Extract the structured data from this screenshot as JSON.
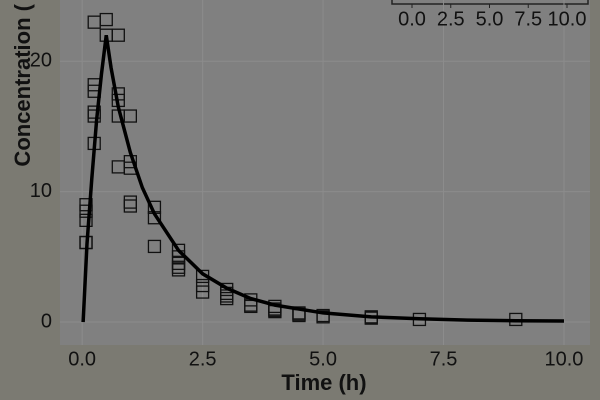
{
  "chart_data": {
    "type": "scatter",
    "x_label": "Time (h)",
    "y_label": "Concentration (",
    "xlim": [
      -0.46,
      10.54
    ],
    "ylim": [
      -1.76,
      24.7
    ],
    "xticks": [
      {
        "value": 0,
        "label": "0.0"
      },
      {
        "value": 2.5,
        "label": "2.5"
      },
      {
        "value": 5,
        "label": "5.0"
      },
      {
        "value": 7.5,
        "label": "7.5"
      },
      {
        "value": 10,
        "label": "10.0"
      }
    ],
    "yticks": [
      0,
      10,
      20
    ],
    "grid": true,
    "series": [
      {
        "type": "scatter",
        "color": "#111111",
        "x": [
          0.08,
          0.08,
          0.08,
          0.08,
          0.08,
          0.25,
          0.25,
          0.25,
          0.25,
          0.25,
          0.25,
          0.5,
          0.5,
          0.75,
          0.75,
          0.75,
          0.75,
          0.75,
          1,
          1,
          1,
          1,
          1,
          1.5,
          1.5,
          1.5,
          2,
          2,
          2,
          2,
          2,
          2.5,
          2.5,
          2.5,
          3,
          3,
          3,
          3,
          3.5,
          3.5,
          3.5,
          4,
          4,
          4,
          4,
          4.5,
          4.5,
          4.5,
          5,
          5,
          6,
          6,
          7,
          9
        ],
        "y": [
          9.0,
          8.5,
          7.8,
          6.1,
          6.1,
          23.0,
          18.2,
          17.7,
          16.1,
          15.8,
          13.7,
          23.2,
          22.0,
          22.0,
          17.5,
          17.0,
          15.8,
          11.9,
          15.8,
          12.3,
          11.8,
          9.2,
          8.9,
          8.8,
          8.0,
          5.8,
          5.5,
          5.0,
          4.5,
          4.0,
          4.2,
          3.5,
          2.8,
          2.3,
          2.5,
          2.2,
          1.8,
          2.0,
          1.7,
          1.2,
          1.3,
          1.2,
          0.8,
          0.9,
          1.0,
          0.7,
          0.5,
          0.6,
          0.4,
          0.5,
          0.4,
          0.3,
          0.2,
          0.2
        ]
      },
      {
        "type": "line",
        "color": "#000000",
        "x": [
          0.02,
          0.1,
          0.2,
          0.3,
          0.4,
          0.5,
          0.6,
          0.75,
          1,
          1.25,
          1.5,
          2,
          2.5,
          3,
          3.5,
          4,
          5,
          6,
          7,
          8,
          9,
          10
        ],
        "y": [
          0,
          6,
          11,
          15.5,
          19,
          22,
          19.5,
          16.5,
          13,
          10.3,
          8.3,
          5.5,
          3.7,
          2.6,
          1.8,
          1.3,
          0.7,
          0.4,
          0.25,
          0.15,
          0.1,
          0.08
        ]
      }
    ],
    "inset": {
      "xticks": [
        {
          "value": 0,
          "label": "0.0"
        },
        {
          "value": 2.5,
          "label": "2.5"
        },
        {
          "value": 5,
          "label": "5.0"
        },
        {
          "value": 7.5,
          "label": "7.5"
        },
        {
          "value": 10,
          "label": "10.0"
        }
      ]
    }
  }
}
